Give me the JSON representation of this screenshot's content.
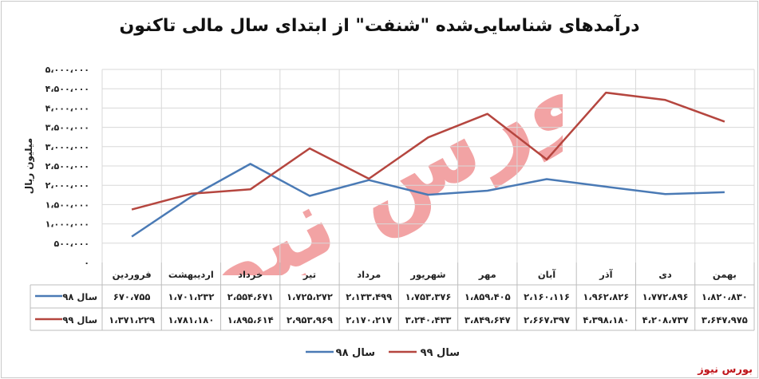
{
  "title": "درآمدهای شناسایی‌شده \"شنفت\" از ابتدای سال مالی تاکنون",
  "brand": "بورس نیوز",
  "colors": {
    "s98": "#4a7ab5",
    "s99": "#b5463f",
    "grid": "#d8d8d8",
    "watermark": "#e8595b"
  },
  "chart_data": {
    "type": "line",
    "title": "درآمدهای شناسایی‌شده \"شنفت\" از ابتدای سال مالی تاکنون",
    "ylabel": "میلیون ریال",
    "ylim": [
      0,
      5000000
    ],
    "yticks": [
      "۵،۰۰۰،۰۰۰",
      "۴،۵۰۰،۰۰۰",
      "۴،۰۰۰،۰۰۰",
      "۳،۵۰۰،۰۰۰",
      "۳،۰۰۰،۰۰۰",
      "۲،۵۰۰،۰۰۰",
      "۲،۰۰۰،۰۰۰",
      "۱،۵۰۰،۰۰۰",
      "۱،۰۰۰،۰۰۰",
      "۵۰۰،۰۰۰",
      "۰"
    ],
    "categories": [
      "فروردین",
      "اردیبهشت",
      "خرداد",
      "تیر",
      "مرداد",
      "شهریور",
      "مهر",
      "آبان",
      "آذر",
      "دی",
      "بهمن"
    ],
    "series": [
      {
        "name": "سال ۹۸",
        "values": [
          670755,
          1701232,
          2554671,
          1725272,
          2133499,
          1753376,
          1859405,
          2160116,
          1962826,
          1772896,
          1820830
        ],
        "labels": [
          "۶۷۰،۷۵۵",
          "۱،۷۰۱،۲۳۲",
          "۲،۵۵۴،۶۷۱",
          "۱،۷۲۵،۲۷۲",
          "۲،۱۳۳،۴۹۹",
          "۱،۷۵۳،۳۷۶",
          "۱،۸۵۹،۴۰۵",
          "۲،۱۶۰،۱۱۶",
          "۱،۹۶۲،۸۲۶",
          "۱،۷۷۲،۸۹۶",
          "۱،۸۲۰،۸۳۰"
        ]
      },
      {
        "name": "سال ۹۹",
        "values": [
          1371229,
          1781180,
          1895614,
          2953969,
          2170217,
          3240433,
          3849647,
          2667397,
          4398180,
          4208737,
          3647975
        ],
        "labels": [
          "۱،۳۷۱،۲۲۹",
          "۱،۷۸۱،۱۸۰",
          "۱،۸۹۵،۶۱۴",
          "۲،۹۵۳،۹۶۹",
          "۲،۱۷۰،۲۱۷",
          "۳،۲۴۰،۴۳۳",
          "۳،۸۴۹،۶۴۷",
          "۲،۶۶۷،۳۹۷",
          "۴،۳۹۸،۱۸۰",
          "۴،۲۰۸،۷۳۷",
          "۳،۶۴۷،۹۷۵"
        ]
      }
    ],
    "grid": true,
    "legend": "bottom"
  },
  "watermark": "بورس نیوز"
}
